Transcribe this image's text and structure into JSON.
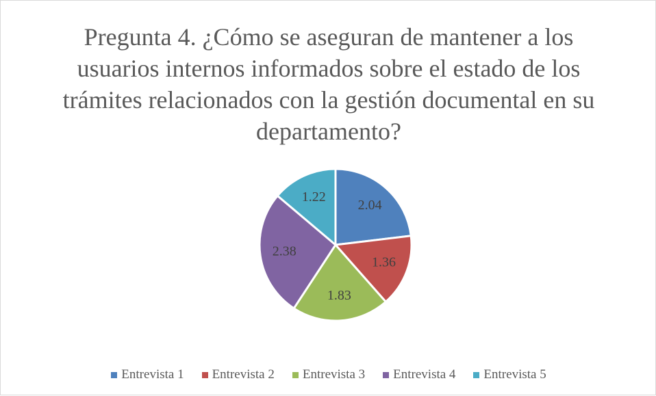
{
  "chart_data": {
    "type": "pie",
    "title": "Pregunta 4. ¿Cómo se aseguran de mantener a los usuarios internos informados sobre el estado de los trámites relacionados con la gestión documental en su departamento?",
    "categories": [
      "Entrevista 1",
      "Entrevista 2",
      "Entrevista 3",
      "Entrevista 4",
      "Entrevista 5"
    ],
    "values": [
      2.04,
      1.36,
      1.83,
      2.38,
      1.22
    ],
    "colors": [
      "#4f81bd",
      "#c0504d",
      "#9bbb59",
      "#8064a2",
      "#4bacc6"
    ],
    "legend": "bottom"
  }
}
